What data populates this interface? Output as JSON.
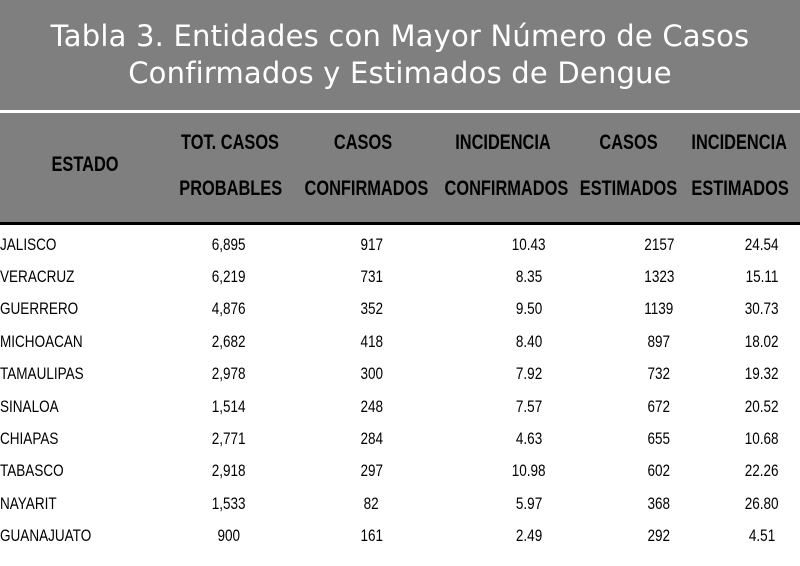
{
  "title": {
    "line1": "Tabla 3. Entidades con Mayor Número de  Casos",
    "line2": "Confirmados y Estimados de Dengue"
  },
  "headers": {
    "estado": "ESTADO",
    "tot_casos_probables": [
      "TOT. CASOS",
      "PROBABLES"
    ],
    "casos_confirmados": [
      "CASOS",
      "CONFIRMADOS"
    ],
    "incidencia_confirmados": [
      "INCIDENCIA",
      "CONFIRMADOS"
    ],
    "casos_estimados": [
      "CASOS",
      "ESTIMADOS"
    ],
    "incidencia_estimados": [
      "INCIDENCIA",
      "ESTIMADOS"
    ]
  },
  "rows": [
    [
      "JALISCO",
      "6,895",
      "917",
      "10.43",
      "2157",
      "24.54"
    ],
    [
      "VERACRUZ",
      "6,219",
      "731",
      "8.35",
      "1323",
      "15.11"
    ],
    [
      "GUERRERO",
      "4,876",
      "352",
      "9.50",
      "1139",
      "30.73"
    ],
    [
      "MICHOACAN",
      "2,682",
      "418",
      "8.40",
      "897",
      "18.02"
    ],
    [
      "TAMAULIPAS",
      "2,978",
      "300",
      "7.92",
      "732",
      "19.32"
    ],
    [
      "SINALOA",
      "1,514",
      "248",
      "7.57",
      "672",
      "20.52"
    ],
    [
      "CHIAPAS",
      "2,771",
      "284",
      "4.63",
      "655",
      "10.68"
    ],
    [
      "TABASCO",
      "2,918",
      "297",
      "10.98",
      "602",
      "22.26"
    ],
    [
      "NAYARIT",
      "1,533",
      "82",
      "5.97",
      "368",
      "26.80"
    ],
    [
      "GUANAJUATO",
      "900",
      "161",
      "2.49",
      "292",
      "4.51"
    ]
  ],
  "colors": {
    "header_band": "#7f7f7f",
    "title_text": "#ffffff",
    "text": "#000000"
  }
}
